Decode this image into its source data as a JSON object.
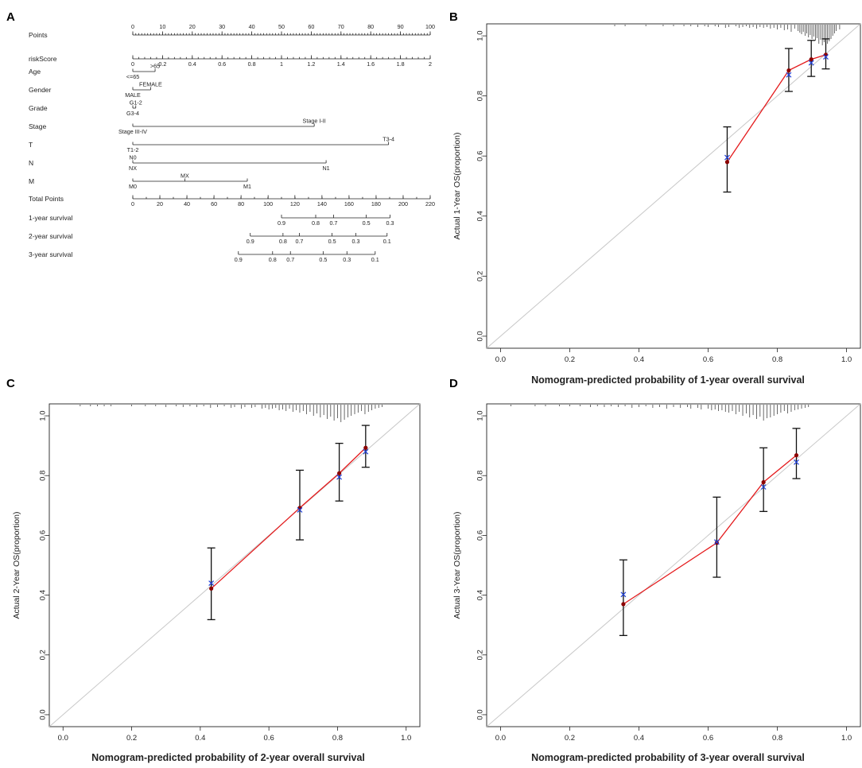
{
  "panels": {
    "A": "A",
    "B": "B",
    "C": "C",
    "D": "D"
  },
  "colors": {
    "ideal": "#c8c8c8",
    "observed": "#e41a1c",
    "observed_point": "#8b0000",
    "bias_corrected": "#1f3fd6",
    "axis": "#222222"
  },
  "nomogram": {
    "rows": [
      {
        "id": "points",
        "label": "Points",
        "type": "scale",
        "ticks": [
          [
            "0",
            0
          ],
          [
            "10",
            10
          ],
          [
            "20",
            20
          ],
          [
            "30",
            30
          ],
          [
            "40",
            40
          ],
          [
            "50",
            50
          ],
          [
            "60",
            60
          ],
          [
            "70",
            70
          ],
          [
            "80",
            80
          ],
          [
            "90",
            90
          ],
          [
            "100",
            100
          ]
        ],
        "minor_step": 1
      },
      {
        "id": "riskscore",
        "label": "riskScore",
        "type": "scale",
        "ticks": [
          [
            "0",
            0
          ],
          [
            "0.2",
            10
          ],
          [
            "0.4",
            20
          ],
          [
            "0.6",
            30
          ],
          [
            "0.8",
            40
          ],
          [
            "1",
            50
          ],
          [
            "1.2",
            60
          ],
          [
            "1.4",
            70
          ],
          [
            "1.6",
            80
          ],
          [
            "1.8",
            90
          ],
          [
            "2",
            100
          ]
        ],
        "minor_step": 2
      },
      {
        "id": "age",
        "label": "Age",
        "type": "segment",
        "range": [
          0,
          7.5
        ],
        "items": [
          {
            "text": "<=65",
            "pos": 0,
            "side": "below"
          },
          {
            "text": ">65",
            "pos": 7.5,
            "side": "above"
          }
        ]
      },
      {
        "id": "gender",
        "label": "Gender",
        "type": "segment",
        "range": [
          0,
          6
        ],
        "items": [
          {
            "text": "MALE",
            "pos": 0,
            "side": "below"
          },
          {
            "text": "FEMALE",
            "pos": 6,
            "side": "above"
          }
        ]
      },
      {
        "id": "grade",
        "label": "Grade",
        "type": "segment",
        "range": [
          0,
          1
        ],
        "items": [
          {
            "text": "G3-4",
            "pos": 0,
            "side": "below"
          },
          {
            "text": "G1-2",
            "pos": 1,
            "side": "above"
          }
        ]
      },
      {
        "id": "stage",
        "label": "Stage",
        "type": "segment",
        "range": [
          0,
          61
        ],
        "items": [
          {
            "text": "Stage III-IV",
            "pos": 0,
            "side": "below"
          },
          {
            "text": "Stage I-II",
            "pos": 61,
            "side": "above"
          }
        ]
      },
      {
        "id": "t",
        "label": "T",
        "type": "segment",
        "range": [
          0,
          86
        ],
        "items": [
          {
            "text": "T1-2",
            "pos": 0,
            "side": "below"
          },
          {
            "text": "T3-4",
            "pos": 86,
            "side": "above"
          }
        ]
      },
      {
        "id": "n",
        "label": "N",
        "type": "segment",
        "range": [
          0,
          65
        ],
        "items": [
          {
            "text": "N0",
            "pos": 0,
            "side": "above"
          },
          {
            "text": "NX",
            "pos": 0,
            "side": "below"
          },
          {
            "text": "N1",
            "pos": 65,
            "side": "below"
          }
        ]
      },
      {
        "id": "m",
        "label": "M",
        "type": "segment",
        "range": [
          0,
          38.5
        ],
        "items": [
          {
            "text": "M0",
            "pos": 0,
            "side": "below"
          },
          {
            "text": "MX",
            "pos": 17.5,
            "side": "above"
          },
          {
            "text": "M1",
            "pos": 38.5,
            "side": "below"
          }
        ]
      },
      {
        "id": "total",
        "label": "Total Points",
        "type": "scale",
        "ticks": [
          [
            "0",
            0
          ],
          [
            "20",
            9.1
          ],
          [
            "40",
            18.2
          ],
          [
            "60",
            27.3
          ],
          [
            "80",
            36.4
          ],
          [
            "100",
            45.5
          ],
          [
            "120",
            54.5
          ],
          [
            "140",
            63.6
          ],
          [
            "160",
            72.7
          ],
          [
            "180",
            81.8
          ],
          [
            "200",
            90.9
          ],
          [
            "220",
            100
          ]
        ],
        "minor_step": 4.545
      },
      {
        "id": "surv1",
        "label": "1-year survival",
        "type": "survival",
        "ticks": [
          [
            "0.9",
            50
          ],
          [
            "0.8",
            61.5
          ],
          [
            "0.7",
            67.5
          ],
          [
            "0.5",
            78.5
          ],
          [
            "0.3",
            86.5
          ]
        ]
      },
      {
        "id": "surv2",
        "label": "2-year survival",
        "type": "survival",
        "ticks": [
          [
            "0.9",
            39.5
          ],
          [
            "0.8",
            50.5
          ],
          [
            "0.7",
            56
          ],
          [
            "0.5",
            67
          ],
          [
            "0.3",
            75
          ],
          [
            "0.1",
            85.5
          ]
        ]
      },
      {
        "id": "surv3",
        "label": "3-year survival",
        "type": "survival",
        "ticks": [
          [
            "0.9",
            35.5
          ],
          [
            "0.8",
            47
          ],
          [
            "0.7",
            53
          ],
          [
            "0.5",
            64
          ],
          [
            "0.3",
            72
          ],
          [
            "0.1",
            81.5
          ]
        ]
      }
    ]
  },
  "chart_data": [
    {
      "panel": "B",
      "type": "scatter",
      "title": "",
      "xlabel": "Nomogram-predicted probability of 1-year overall survival",
      "ylabel": "Actual 1-Year OS(proportion)",
      "xlim": [
        -0.04,
        1.04
      ],
      "ylim": [
        -0.04,
        1.04
      ],
      "xticks": [
        "0.0",
        "0.2",
        "0.4",
        "0.6",
        "0.8",
        "1.0"
      ],
      "yticks": [
        "0.0",
        "0.2",
        "0.4",
        "0.6",
        "0.8",
        "1.0"
      ],
      "ideal_line": [
        [
          0,
          0
        ],
        [
          1,
          1
        ]
      ],
      "series": [
        {
          "name": "observed",
          "x": [
            0.655,
            0.833,
            0.898,
            0.94
          ],
          "y": [
            0.58,
            0.885,
            0.922,
            0.937
          ],
          "lower": [
            0.48,
            0.815,
            0.865,
            0.89
          ],
          "upper": [
            0.697,
            0.958,
            0.985,
            0.99
          ]
        },
        {
          "name": "bias-corrected",
          "x": [
            0.655,
            0.833,
            0.898,
            0.94
          ],
          "y": [
            0.595,
            0.87,
            0.91,
            0.93
          ]
        }
      ],
      "rug": [
        0.33,
        0.36,
        0.42,
        0.47,
        0.5,
        0.53,
        0.55,
        0.57,
        0.59,
        0.6,
        0.62,
        0.63,
        0.65,
        0.66,
        0.68,
        0.69,
        0.7,
        0.71,
        0.72,
        0.73,
        0.74,
        0.75,
        0.76,
        0.77,
        0.78,
        0.79,
        0.8,
        0.81,
        0.82,
        0.83,
        0.84,
        0.85,
        0.86,
        0.865,
        0.87,
        0.875,
        0.88,
        0.885,
        0.89,
        0.895,
        0.9,
        0.905,
        0.91,
        0.915,
        0.92,
        0.925,
        0.93,
        0.935,
        0.94,
        0.945,
        0.95,
        0.955,
        0.96,
        0.965,
        0.97,
        0.98
      ],
      "rug_len": [
        2,
        2,
        2,
        2,
        2,
        2,
        2,
        3,
        2,
        3,
        2,
        3,
        4,
        3,
        2,
        4,
        3,
        2,
        4,
        3,
        5,
        3,
        4,
        3,
        5,
        4,
        6,
        4,
        7,
        6,
        9,
        5,
        8,
        10,
        12,
        9,
        14,
        11,
        16,
        13,
        18,
        15,
        20,
        17,
        24,
        19,
        26,
        22,
        28,
        24,
        21,
        18,
        14,
        11,
        8,
        6
      ]
    },
    {
      "panel": "C",
      "type": "scatter",
      "title": "",
      "xlabel": "Nomogram-predicted probability of 2-year overall survival",
      "ylabel": "Actual 2-Year OS(proportion)",
      "xlim": [
        -0.04,
        1.04
      ],
      "ylim": [
        -0.04,
        1.04
      ],
      "xticks": [
        "0.0",
        "0.2",
        "0.4",
        "0.6",
        "0.8",
        "1.0"
      ],
      "yticks": [
        "0.0",
        "0.2",
        "0.4",
        "0.6",
        "0.8",
        "1.0"
      ],
      "ideal_line": [
        [
          0,
          0
        ],
        [
          1,
          1
        ]
      ],
      "series": [
        {
          "name": "observed",
          "x": [
            0.432,
            0.69,
            0.805,
            0.882
          ],
          "y": [
            0.422,
            0.692,
            0.808,
            0.893
          ],
          "lower": [
            0.318,
            0.585,
            0.715,
            0.828
          ],
          "upper": [
            0.558,
            0.818,
            0.908,
            0.968
          ]
        },
        {
          "name": "bias-corrected",
          "x": [
            0.432,
            0.69,
            0.805,
            0.882
          ],
          "y": [
            0.44,
            0.685,
            0.795,
            0.88
          ]
        }
      ],
      "rug": [
        0.05,
        0.08,
        0.1,
        0.12,
        0.14,
        0.2,
        0.24,
        0.27,
        0.3,
        0.33,
        0.35,
        0.37,
        0.39,
        0.41,
        0.43,
        0.45,
        0.47,
        0.49,
        0.5,
        0.52,
        0.53,
        0.55,
        0.56,
        0.58,
        0.59,
        0.6,
        0.61,
        0.62,
        0.63,
        0.64,
        0.65,
        0.66,
        0.67,
        0.68,
        0.69,
        0.7,
        0.71,
        0.72,
        0.73,
        0.74,
        0.75,
        0.76,
        0.77,
        0.78,
        0.79,
        0.8,
        0.81,
        0.82,
        0.83,
        0.84,
        0.85,
        0.86,
        0.87,
        0.88,
        0.89,
        0.9,
        0.91,
        0.92,
        0.93
      ],
      "rug_len": [
        2,
        2,
        2,
        2,
        2,
        2,
        2,
        2,
        3,
        2,
        3,
        2,
        3,
        2,
        4,
        3,
        2,
        4,
        3,
        5,
        3,
        4,
        3,
        5,
        4,
        6,
        5,
        4,
        7,
        6,
        8,
        5,
        9,
        7,
        10,
        8,
        12,
        9,
        14,
        11,
        16,
        13,
        18,
        15,
        20,
        17,
        22,
        19,
        16,
        14,
        12,
        10,
        8,
        12,
        9,
        7,
        5,
        4,
        3
      ]
    },
    {
      "panel": "D",
      "type": "scatter",
      "title": "",
      "xlabel": "Nomogram-predicted probability of 3-year overall survival",
      "ylabel": "Actual 3-Year OS(proportion)",
      "xlim": [
        -0.04,
        1.04
      ],
      "ylim": [
        -0.04,
        1.04
      ],
      "xticks": [
        "0.0",
        "0.2",
        "0.4",
        "0.6",
        "0.8",
        "1.0"
      ],
      "yticks": [
        "0.0",
        "0.2",
        "0.4",
        "0.6",
        "0.8",
        "1.0"
      ],
      "ideal_line": [
        [
          0,
          0
        ],
        [
          1,
          1
        ]
      ],
      "series": [
        {
          "name": "observed",
          "x": [
            0.355,
            0.625,
            0.76,
            0.855
          ],
          "y": [
            0.37,
            0.575,
            0.778,
            0.868
          ],
          "lower": [
            0.265,
            0.46,
            0.68,
            0.79
          ],
          "upper": [
            0.518,
            0.728,
            0.893,
            0.958
          ]
        },
        {
          "name": "bias-corrected",
          "x": [
            0.355,
            0.625,
            0.76,
            0.855
          ],
          "y": [
            0.402,
            0.578,
            0.762,
            0.845
          ]
        }
      ],
      "rug": [
        0.03,
        0.1,
        0.13,
        0.17,
        0.2,
        0.23,
        0.26,
        0.28,
        0.3,
        0.32,
        0.34,
        0.36,
        0.38,
        0.4,
        0.42,
        0.44,
        0.46,
        0.48,
        0.5,
        0.52,
        0.54,
        0.55,
        0.57,
        0.58,
        0.6,
        0.61,
        0.62,
        0.63,
        0.64,
        0.65,
        0.66,
        0.67,
        0.68,
        0.69,
        0.7,
        0.71,
        0.72,
        0.73,
        0.74,
        0.75,
        0.76,
        0.77,
        0.78,
        0.79,
        0.8,
        0.81,
        0.82,
        0.83,
        0.84,
        0.85,
        0.86,
        0.87,
        0.88,
        0.89
      ],
      "rug_len": [
        2,
        2,
        2,
        2,
        2,
        2,
        3,
        2,
        3,
        2,
        3,
        2,
        4,
        3,
        2,
        4,
        3,
        5,
        3,
        4,
        3,
        5,
        4,
        6,
        5,
        7,
        6,
        8,
        7,
        9,
        10,
        8,
        12,
        9,
        14,
        11,
        16,
        13,
        18,
        15,
        20,
        17,
        16,
        14,
        12,
        10,
        8,
        11,
        9,
        7,
        6,
        5,
        4,
        3
      ]
    }
  ]
}
